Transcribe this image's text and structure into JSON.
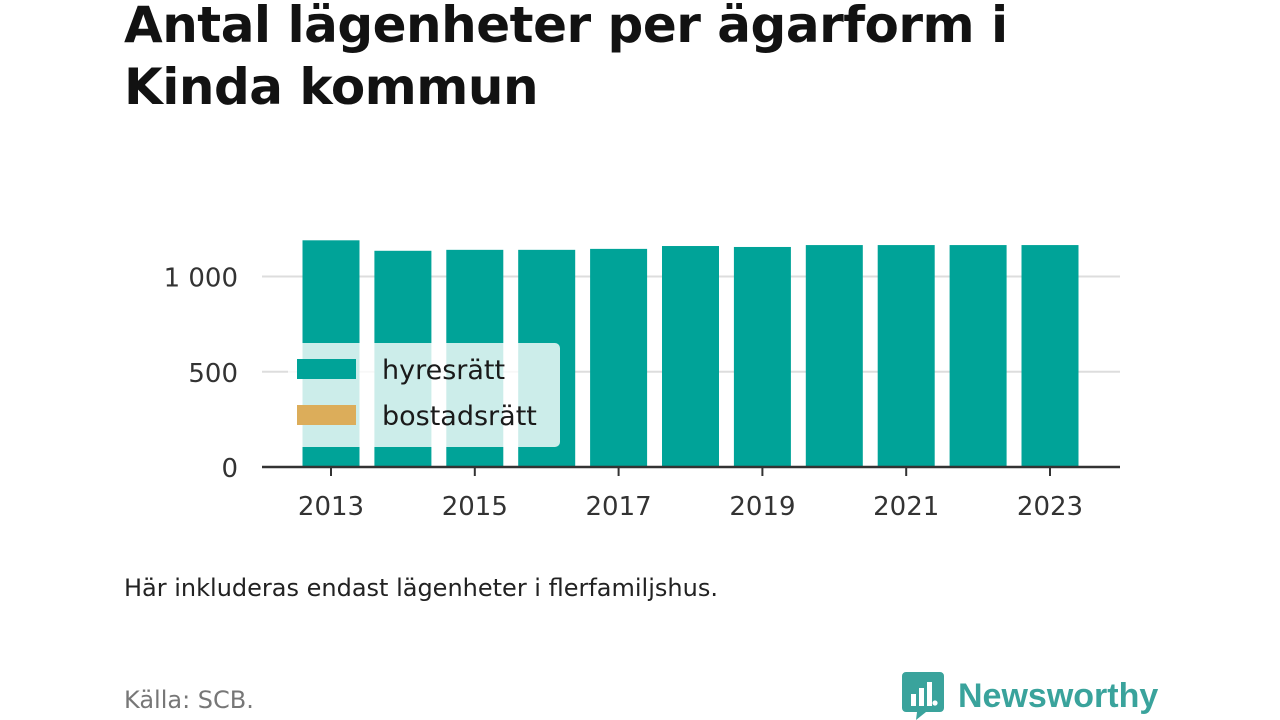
{
  "title": "Antal lägenheter per ägarform i Kinda kommun",
  "note": "Här inkluderas endast lägenheter i flerfamiljshus.",
  "source": "Källa: SCB.",
  "brand": "Newsworthy",
  "colors": {
    "hyresratt": "#00a398",
    "bostadsratt": "#dcad5a",
    "grid": "#dddddd",
    "axis": "#333333",
    "brand": "#3aa39c"
  },
  "chart_data": {
    "type": "bar",
    "stacked": true,
    "categories": [
      "2013",
      "2014",
      "2015",
      "2016",
      "2017",
      "2018",
      "2019",
      "2020",
      "2021",
      "2022",
      "2023"
    ],
    "x_tick_labels": [
      "2013",
      "2015",
      "2017",
      "2019",
      "2021",
      "2023"
    ],
    "series": [
      {
        "name": "hyresrätt",
        "values": [
          1190,
          1135,
          1140,
          1140,
          1145,
          1160,
          1155,
          1165,
          1165,
          1165,
          1165
        ]
      },
      {
        "name": "bostadsrätt",
        "values": [
          0,
          0,
          0,
          0,
          0,
          0,
          0,
          0,
          0,
          0,
          0
        ]
      }
    ],
    "y_ticks": [
      0,
      500,
      1000
    ],
    "y_tick_labels": [
      "0",
      "500",
      "1 000"
    ],
    "ylim": [
      0,
      1250
    ],
    "grid": true,
    "legend_position": "bottom-left"
  }
}
